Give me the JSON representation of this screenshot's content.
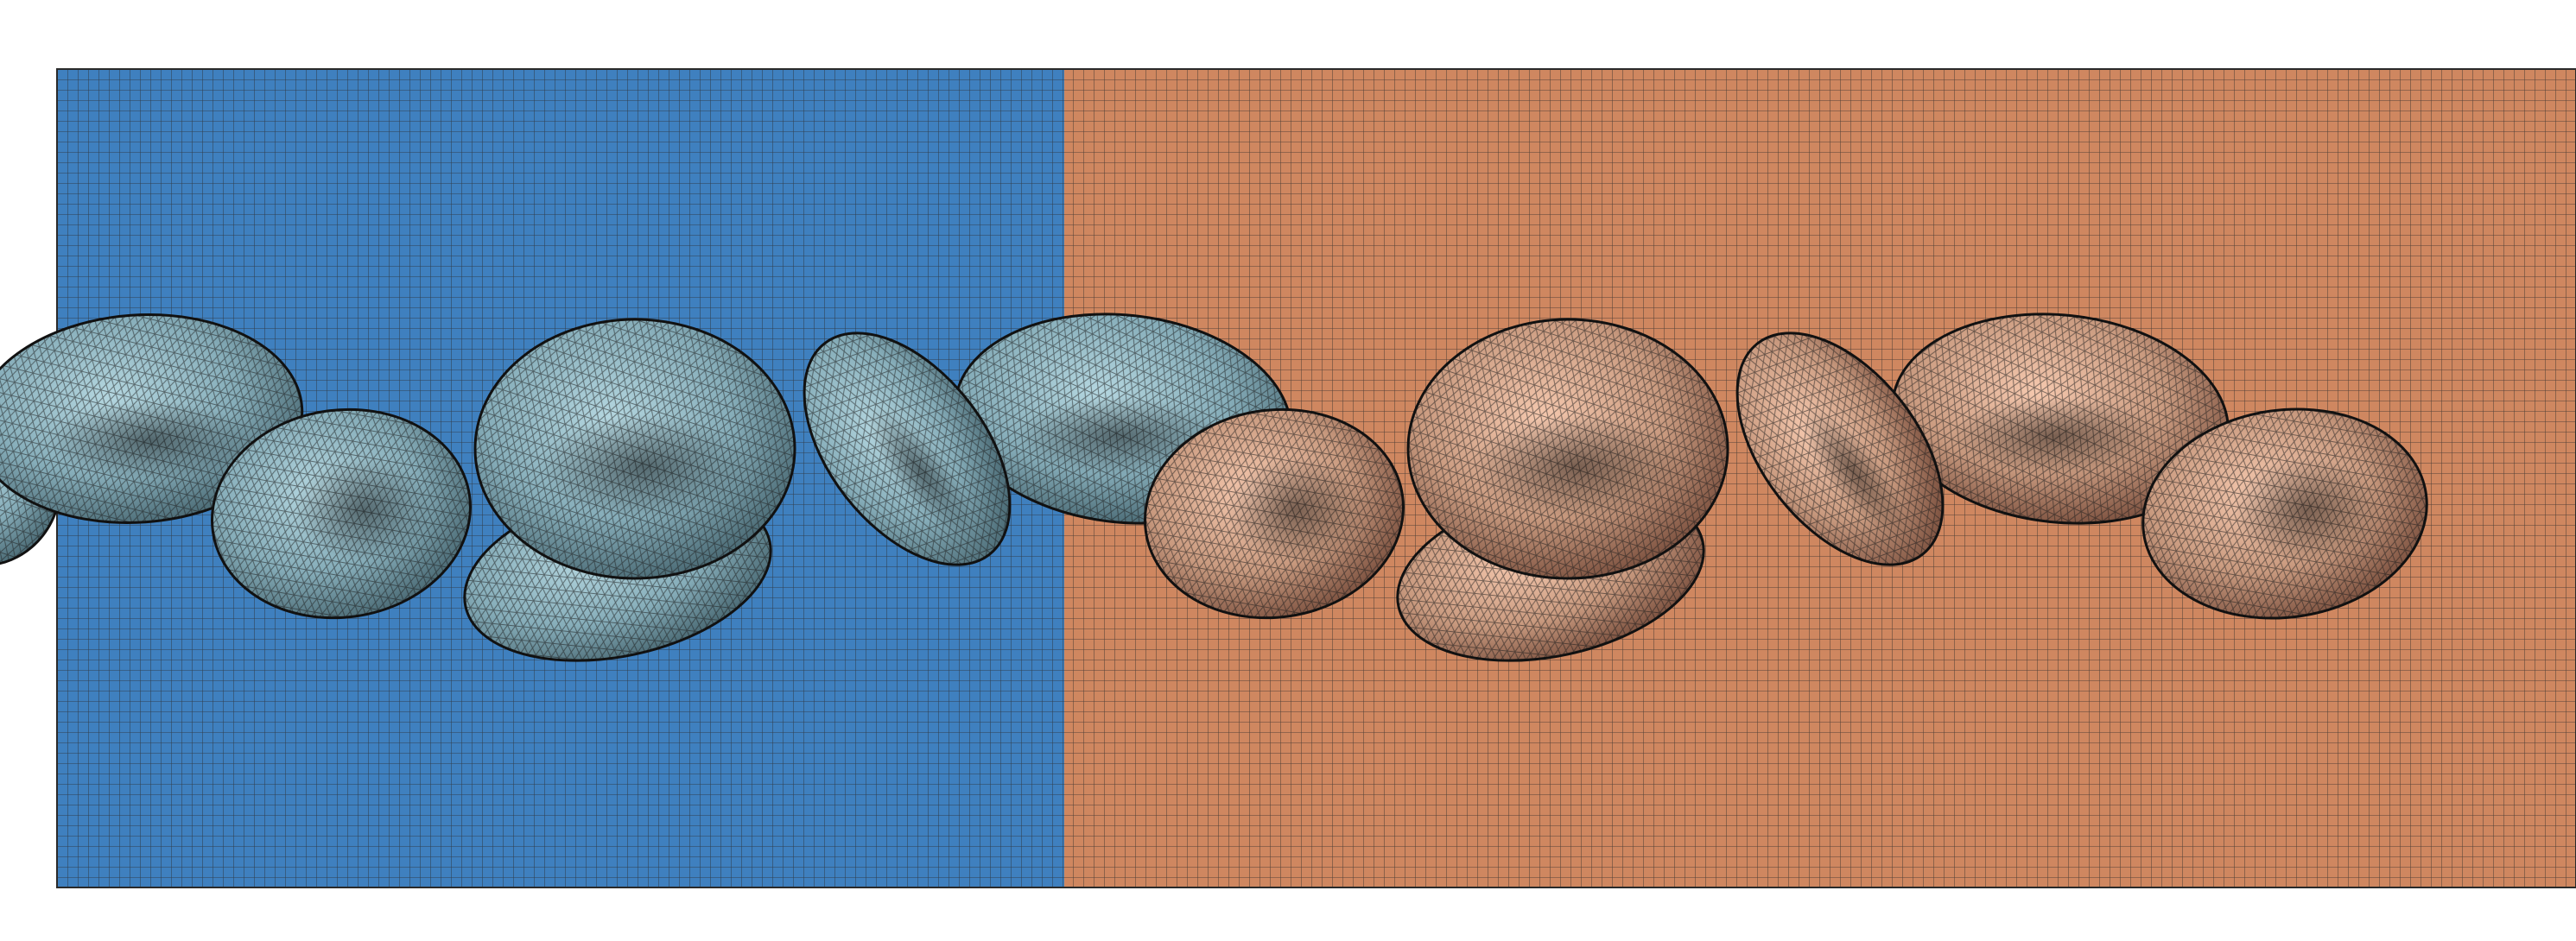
{
  "colors": {
    "background": "#ffffff",
    "region_left": "#3f80bf",
    "region_right": "#cf8760",
    "grid_line": "#2a2a2a",
    "wireframe_line": "#1c1c1c",
    "cell_left_light": "#a9cfd9",
    "cell_left_mid": "#7ea8b4",
    "cell_left_dark": "#3c5a64",
    "cell_right_light": "#f4c3a6",
    "cell_right_mid": "#c8977c",
    "cell_right_dark": "#6e4434"
  },
  "icons": {
    "cell": "red-blood-cell-mesh-icon"
  },
  "mesh": {
    "grid": "structured-quad",
    "cells": "triangulated-surface"
  }
}
